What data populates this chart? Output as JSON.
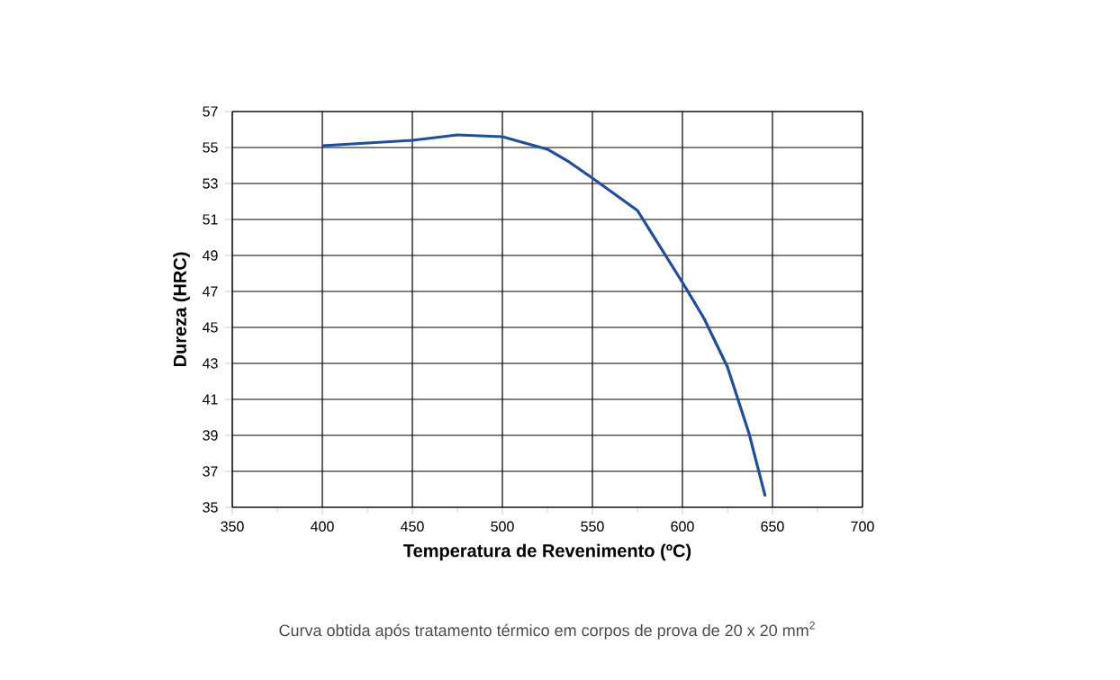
{
  "chart_data": {
    "type": "line",
    "xlabel": "Temperatura de Revenimento (ºC)",
    "ylabel": "Dureza (HRC)",
    "annotations": [
      "Curva obtida após tratamento térmico em corpos de prova de 20 x 20 mm$^{2}$"
    ],
    "x": [
      400,
      450,
      475,
      500,
      525,
      537,
      550,
      575,
      600,
      612,
      625,
      637,
      646
    ],
    "series": [
      {
        "color": "#1f4e9a",
        "values": [
          55.1,
          55.4,
          55.7,
          55.6,
          54.9,
          54.2,
          53.3,
          51.5,
          47.5,
          45.5,
          42.8,
          39.1,
          35.6
        ]
      }
    ],
    "xlim": [
      350,
      700
    ],
    "ylim": [
      35,
      57
    ],
    "xticks": [
      350,
      400,
      450,
      500,
      550,
      600,
      650,
      700
    ],
    "yticks": [
      35,
      37,
      39,
      41,
      43,
      45,
      47,
      49,
      51,
      53,
      55,
      57
    ],
    "grid": true,
    "marker": "none",
    "line_style": "solid"
  }
}
